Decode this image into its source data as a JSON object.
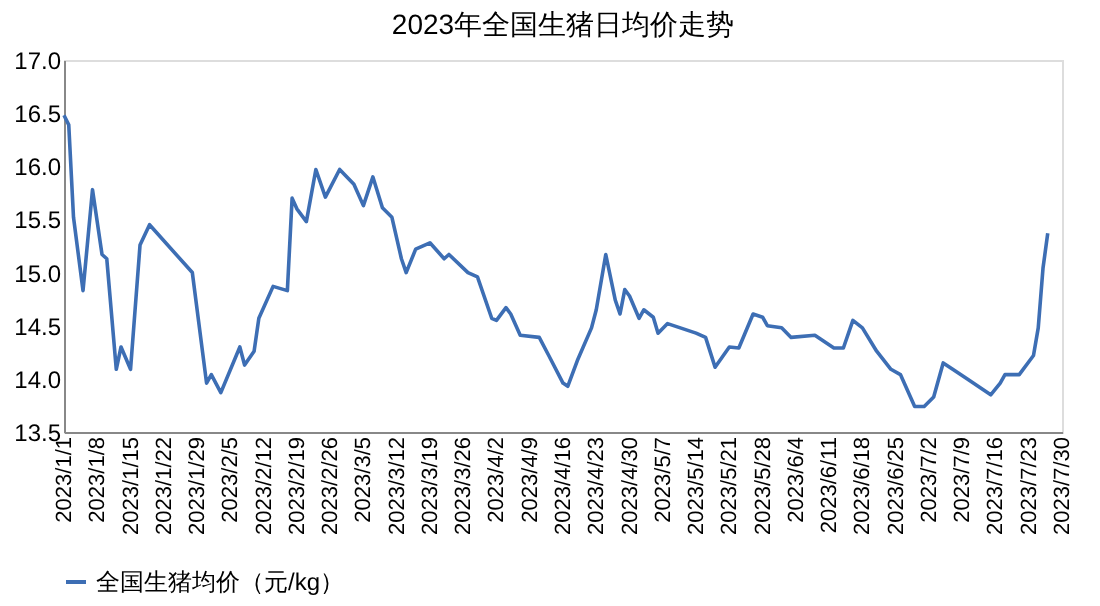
{
  "chart_data": {
    "type": "line",
    "title": "2023年全国生猪日均价走势",
    "x": [
      "2023-01-01",
      "2023-01-02",
      "2023-01-03",
      "2023-01-05",
      "2023-01-07",
      "2023-01-09",
      "2023-01-10",
      "2023-01-12",
      "2023-01-13",
      "2023-01-15",
      "2023-01-17",
      "2023-01-19",
      "2023-01-28",
      "2023-01-31",
      "2023-02-01",
      "2023-02-03",
      "2023-02-07",
      "2023-02-08",
      "2023-02-10",
      "2023-02-11",
      "2023-02-14",
      "2023-02-17",
      "2023-02-18",
      "2023-02-19",
      "2023-02-21",
      "2023-02-23",
      "2023-02-25",
      "2023-02-28",
      "2023-03-03",
      "2023-03-05",
      "2023-03-07",
      "2023-03-09",
      "2023-03-11",
      "2023-03-13",
      "2023-03-14",
      "2023-03-16",
      "2023-03-19",
      "2023-03-22",
      "2023-03-23",
      "2023-03-27",
      "2023-03-29",
      "2023-04-01",
      "2023-04-02",
      "2023-04-04",
      "2023-04-05",
      "2023-04-07",
      "2023-04-11",
      "2023-04-13",
      "2023-04-16",
      "2023-04-17",
      "2023-04-19",
      "2023-04-22",
      "2023-04-23",
      "2023-04-25",
      "2023-04-27",
      "2023-04-28",
      "2023-04-29",
      "2023-04-30",
      "2023-05-02",
      "2023-05-03",
      "2023-05-05",
      "2023-05-06",
      "2023-05-08",
      "2023-05-14",
      "2023-05-16",
      "2023-05-18",
      "2023-05-21",
      "2023-05-23",
      "2023-05-26",
      "2023-05-28",
      "2023-05-29",
      "2023-06-01",
      "2023-06-03",
      "2023-06-08",
      "2023-06-12",
      "2023-06-14",
      "2023-06-16",
      "2023-06-18",
      "2023-06-21",
      "2023-06-24",
      "2023-06-26",
      "2023-06-29",
      "2023-07-01",
      "2023-07-03",
      "2023-07-05",
      "2023-07-07",
      "2023-07-10",
      "2023-07-15",
      "2023-07-17",
      "2023-07-18",
      "2023-07-21",
      "2023-07-24",
      "2023-07-25",
      "2023-07-26",
      "2023-07-27"
    ],
    "series": [
      {
        "name": "全国生猪均价（元/kg）",
        "color": "#3d6eb4",
        "values": [
          16.48,
          16.39,
          15.52,
          14.83,
          15.78,
          15.17,
          15.13,
          14.09,
          14.3,
          14.09,
          15.26,
          15.45,
          15.0,
          13.96,
          14.04,
          13.87,
          14.3,
          14.13,
          14.26,
          14.57,
          14.87,
          14.83,
          15.7,
          15.6,
          15.48,
          15.97,
          15.71,
          15.97,
          15.83,
          15.63,
          15.9,
          15.61,
          15.52,
          15.13,
          15.0,
          15.22,
          15.28,
          15.13,
          15.17,
          15.0,
          14.96,
          14.57,
          14.55,
          14.67,
          14.61,
          14.41,
          14.39,
          14.22,
          13.96,
          13.93,
          14.17,
          14.48,
          14.65,
          15.17,
          14.74,
          14.61,
          14.84,
          14.78,
          14.57,
          14.65,
          14.58,
          14.43,
          14.52,
          14.43,
          14.39,
          14.11,
          14.3,
          14.29,
          14.61,
          14.58,
          14.5,
          14.48,
          14.39,
          14.41,
          14.29,
          14.29,
          14.55,
          14.48,
          14.26,
          14.09,
          14.04,
          13.74,
          13.74,
          13.83,
          14.15,
          14.09,
          14.0,
          13.85,
          13.96,
          14.04,
          14.04,
          14.22,
          14.48,
          15.04,
          15.37
        ]
      }
    ],
    "xlim": [
      "2023-01-01",
      "2023-07-30"
    ],
    "xticks": [
      {
        "value": "2023-01-01",
        "label": "2023/1/1"
      },
      {
        "value": "2023-01-08",
        "label": "2023/1/8"
      },
      {
        "value": "2023-01-15",
        "label": "2023/1/15"
      },
      {
        "value": "2023-01-22",
        "label": "2023/1/22"
      },
      {
        "value": "2023-01-29",
        "label": "2023/1/29"
      },
      {
        "value": "2023-02-05",
        "label": "2023/2/5"
      },
      {
        "value": "2023-02-12",
        "label": "2023/2/12"
      },
      {
        "value": "2023-02-19",
        "label": "2023/2/19"
      },
      {
        "value": "2023-02-26",
        "label": "2023/2/26"
      },
      {
        "value": "2023-03-05",
        "label": "2023/3/5"
      },
      {
        "value": "2023-03-12",
        "label": "2023/3/12"
      },
      {
        "value": "2023-03-19",
        "label": "2023/3/19"
      },
      {
        "value": "2023-03-26",
        "label": "2023/3/26"
      },
      {
        "value": "2023-04-02",
        "label": "2023/4/2"
      },
      {
        "value": "2023-04-09",
        "label": "2023/4/9"
      },
      {
        "value": "2023-04-16",
        "label": "2023/4/16"
      },
      {
        "value": "2023-04-23",
        "label": "2023/4/23"
      },
      {
        "value": "2023-04-30",
        "label": "2023/4/30"
      },
      {
        "value": "2023-05-07",
        "label": "2023/5/7"
      },
      {
        "value": "2023-05-14",
        "label": "2023/5/14"
      },
      {
        "value": "2023-05-21",
        "label": "2023/5/21"
      },
      {
        "value": "2023-05-28",
        "label": "2023/5/28"
      },
      {
        "value": "2023-06-04",
        "label": "2023/6/4"
      },
      {
        "value": "2023-06-11",
        "label": "2023/6/11"
      },
      {
        "value": "2023-06-18",
        "label": "2023/6/18"
      },
      {
        "value": "2023-06-25",
        "label": "2023/6/25"
      },
      {
        "value": "2023-07-02",
        "label": "2023/7/2"
      },
      {
        "value": "2023-07-09",
        "label": "2023/7/9"
      },
      {
        "value": "2023-07-16",
        "label": "2023/7/16"
      },
      {
        "value": "2023-07-23",
        "label": "2023/7/23"
      },
      {
        "value": "2023-07-30",
        "label": "2023/7/30"
      }
    ],
    "ylim": [
      13.5,
      17.0
    ],
    "yticks": [
      {
        "value": 13.5,
        "label": "13.5"
      },
      {
        "value": 14,
        "label": "14.0"
      },
      {
        "value": 14.5,
        "label": "14.5"
      },
      {
        "value": 15,
        "label": "15.0"
      },
      {
        "value": 15.5,
        "label": "15.5"
      },
      {
        "value": 16,
        "label": "16.0"
      },
      {
        "value": 16.5,
        "label": "16.5"
      },
      {
        "value": 17,
        "label": "17.0"
      }
    ],
    "grid": false,
    "legend": "bottom",
    "marker": "none",
    "line_style": "solid"
  }
}
